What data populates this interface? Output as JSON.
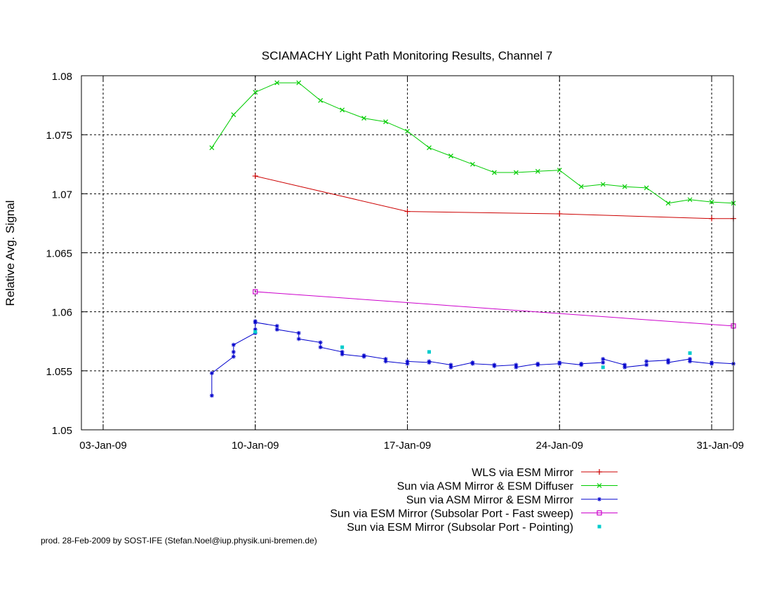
{
  "chart_data": {
    "type": "line",
    "title": "SCIAMACHY Light Path Monitoring Results, Channel 7",
    "xlabel": "",
    "ylabel": "Relative Avg. Signal",
    "footer": "prod. 28-Feb-2009 by SOST-IFE (Stefan.Noel@iup.physik.uni-bremen.de)",
    "x_ticks": [
      "03-Jan-09",
      "10-Jan-09",
      "17-Jan-09",
      "24-Jan-09",
      "31-Jan-09"
    ],
    "y_ticks": [
      "1.05",
      "1.055",
      "1.06",
      "1.065",
      "1.07",
      "1.075",
      "1.08"
    ],
    "xlim": [
      "2009-01-02",
      "2009-02-01"
    ],
    "ylim": [
      1.05,
      1.08
    ],
    "grid": true,
    "legend_position": "bottom-right",
    "series": [
      {
        "name": "WLS via ESM Mirror",
        "color": "#cc0000",
        "marker": "plus",
        "x": [
          "2009-01-10",
          "2009-01-17",
          "2009-01-24",
          "2009-01-31",
          "2009-02-01"
        ],
        "y": [
          1.0715,
          1.0685,
          1.0683,
          1.0679,
          1.0679
        ]
      },
      {
        "name": "Sun via ASM Mirror & ESM Diffuser",
        "color": "#00cc00",
        "marker": "cross",
        "x": [
          "2009-01-08",
          "2009-01-09",
          "2009-01-10",
          "2009-01-11",
          "2009-01-12",
          "2009-01-13",
          "2009-01-14",
          "2009-01-15",
          "2009-01-16",
          "2009-01-17",
          "2009-01-18",
          "2009-01-19",
          "2009-01-20",
          "2009-01-21",
          "2009-01-22",
          "2009-01-23",
          "2009-01-24",
          "2009-01-25",
          "2009-01-26",
          "2009-01-27",
          "2009-01-28",
          "2009-01-29",
          "2009-01-30",
          "2009-01-31",
          "2009-02-01"
        ],
        "y": [
          1.0739,
          1.0767,
          1.0786,
          1.0794,
          1.0794,
          1.0779,
          1.0771,
          1.0764,
          1.0761,
          1.0753,
          1.0739,
          1.0732,
          1.0725,
          1.0718,
          1.0718,
          1.0719,
          1.072,
          1.0706,
          1.0708,
          1.0706,
          1.0705,
          1.0692,
          1.0695,
          1.0693,
          1.0692
        ]
      },
      {
        "name": "Sun via ASM Mirror & ESM Mirror",
        "color": "#0000cc",
        "marker": "star",
        "x": [
          "2009-01-08",
          "2009-01-08",
          "2009-01-09",
          "2009-01-09",
          "2009-01-09",
          "2009-01-10",
          "2009-01-10",
          "2009-01-10",
          "2009-01-10",
          "2009-01-11",
          "2009-01-11",
          "2009-01-12",
          "2009-01-12",
          "2009-01-13",
          "2009-01-13",
          "2009-01-14",
          "2009-01-14",
          "2009-01-15",
          "2009-01-15",
          "2009-01-16",
          "2009-01-16",
          "2009-01-17",
          "2009-01-17",
          "2009-01-18",
          "2009-01-18",
          "2009-01-19",
          "2009-01-19",
          "2009-01-20",
          "2009-01-20",
          "2009-01-21",
          "2009-01-21",
          "2009-01-22",
          "2009-01-22",
          "2009-01-23",
          "2009-01-23",
          "2009-01-24",
          "2009-01-24",
          "2009-01-25",
          "2009-01-25",
          "2009-01-26",
          "2009-01-26",
          "2009-01-27",
          "2009-01-27",
          "2009-01-28",
          "2009-01-28",
          "2009-01-29",
          "2009-01-29",
          "2009-01-30",
          "2009-01-30",
          "2009-01-31",
          "2009-01-31",
          "2009-02-01"
        ],
        "y": [
          1.0529,
          1.0548,
          1.0562,
          1.0566,
          1.0572,
          1.0582,
          1.0585,
          1.0592,
          1.0591,
          1.0588,
          1.0585,
          1.0582,
          1.0577,
          1.0574,
          1.057,
          1.0566,
          1.0564,
          1.0562,
          1.0563,
          1.056,
          1.0558,
          1.0556,
          1.0558,
          1.0557,
          1.0558,
          1.0555,
          1.0553,
          1.0557,
          1.0556,
          1.0555,
          1.0554,
          1.0555,
          1.0553,
          1.0556,
          1.0555,
          1.0556,
          1.0557,
          1.0555,
          1.0556,
          1.0557,
          1.056,
          1.0555,
          1.0553,
          1.0555,
          1.0558,
          1.0559,
          1.0557,
          1.056,
          1.0558,
          1.0556,
          1.0557,
          1.0556
        ]
      },
      {
        "name": "Sun via ESM Mirror (Subsolar Port - Fast sweep)",
        "color": "#cc00cc",
        "marker": "square",
        "x": [
          "2009-01-10",
          "2009-02-01"
        ],
        "y": [
          1.0617,
          1.0588
        ]
      },
      {
        "name": "Sun via ESM Mirror (Subsolar Port - Pointing)",
        "color": "#00cccc",
        "marker": "dot",
        "x": [
          "2009-01-10",
          "2009-01-14",
          "2009-01-18",
          "2009-01-26",
          "2009-01-30"
        ],
        "y": [
          1.0583,
          1.057,
          1.0566,
          1.0553,
          1.0565
        ]
      }
    ]
  }
}
